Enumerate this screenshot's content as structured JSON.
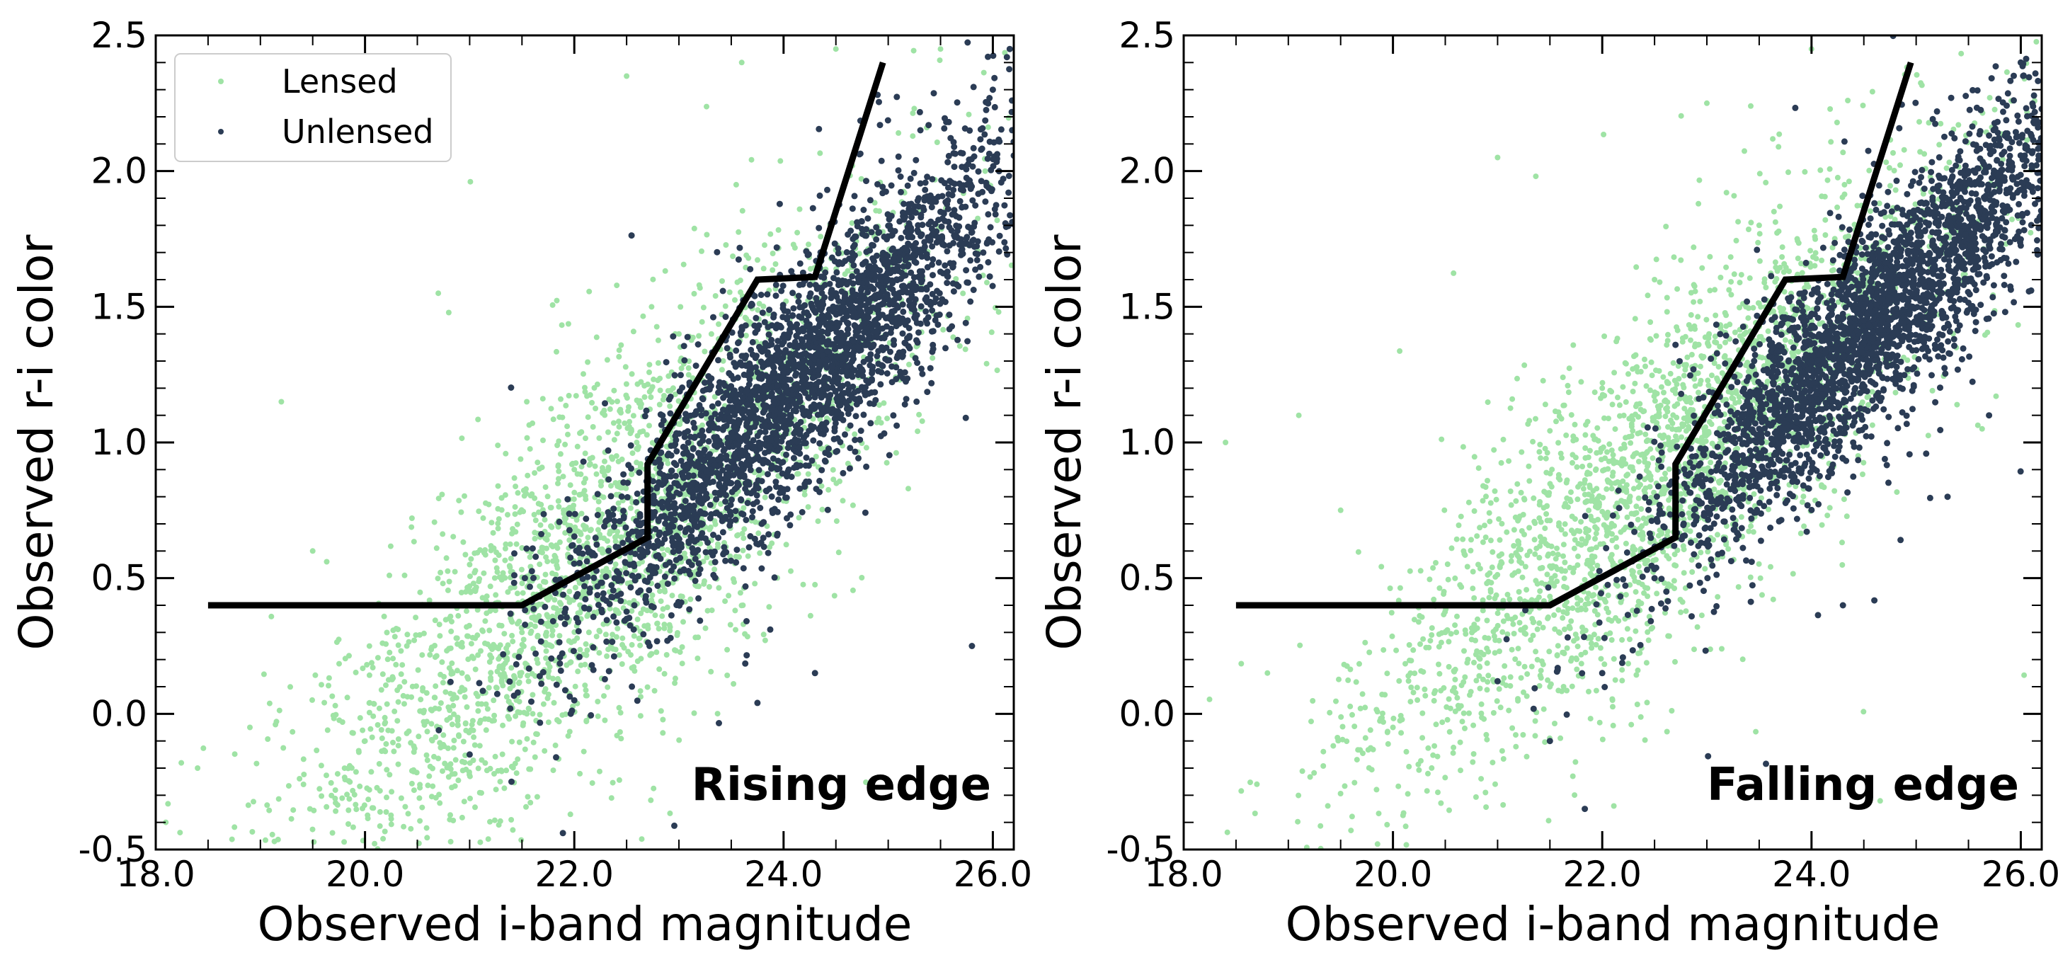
{
  "chart_data": [
    {
      "type": "scatter",
      "xlabel": "Observed i-band magnitude",
      "ylabel": "Observed r-i color",
      "xlim": [
        18.0,
        26.2
      ],
      "ylim": [
        -0.5,
        2.5
      ],
      "xticks": [
        18.0,
        20.0,
        22.0,
        24.0,
        26.0
      ],
      "xtick_labels": [
        "18.0",
        "20.0",
        "22.0",
        "24.0",
        "26.0"
      ],
      "yticks": [
        -0.5,
        0.0,
        0.5,
        1.0,
        1.5,
        2.0,
        2.5
      ],
      "ytick_labels": [
        "-0.5",
        "0.0",
        "0.5",
        "1.0",
        "1.5",
        "2.0",
        "2.5"
      ],
      "annotation": "Rising edge",
      "legend": {
        "placement": "top-left",
        "entries": [
          "Lensed",
          "Unlensed"
        ]
      },
      "series": [
        {
          "name": "Lensed",
          "color": "#9fe3a5",
          "distribution": {
            "slope": 0.33,
            "x_center": 22.3,
            "y_at_center": 0.6,
            "x_spread": 1.55,
            "y_scatter": 0.33,
            "n": 2600
          },
          "values": [
            [
              18.4,
              -0.2
            ],
            [
              18.9,
              -0.05
            ],
            [
              19.2,
              1.15
            ],
            [
              19.5,
              0.6
            ],
            [
              20.0,
              -0.1
            ],
            [
              20.4,
              0.25
            ],
            [
              20.7,
              1.55
            ],
            [
              21.0,
              0.55
            ],
            [
              21.5,
              0.3
            ],
            [
              22.0,
              0.9
            ],
            [
              22.5,
              2.35
            ],
            [
              23.0,
              1.4
            ],
            [
              23.6,
              2.4
            ],
            [
              24.5,
              2.45
            ],
            [
              25.5,
              2.45
            ]
          ]
        },
        {
          "name": "Unlensed",
          "color": "#2b3c55",
          "distribution": {
            "slope": 0.37,
            "x_center": 24.2,
            "y_at_center": 1.25,
            "x_spread": 1.1,
            "y_scatter": 0.2,
            "n": 3000
          },
          "values": [
            [
              21.0,
              -0.15
            ],
            [
              21.4,
              -0.25
            ],
            [
              22.0,
              0.05
            ],
            [
              22.5,
              0.35
            ],
            [
              23.0,
              0.6
            ],
            [
              23.5,
              0.85
            ],
            [
              24.0,
              1.1
            ],
            [
              24.5,
              1.35
            ],
            [
              25.0,
              1.6
            ],
            [
              25.5,
              1.85
            ],
            [
              26.0,
              2.3
            ],
            [
              25.8,
              0.25
            ],
            [
              24.3,
              0.15
            ]
          ]
        },
        {
          "name": "",
          "color": "#000000",
          "values": [
            [
              18.5,
              0.4
            ],
            [
              21.5,
              0.4
            ],
            [
              22.7,
              0.65
            ],
            [
              22.7,
              0.92
            ],
            [
              23.75,
              1.6
            ],
            [
              24.3,
              1.61
            ],
            [
              24.95,
              2.4
            ]
          ]
        }
      ]
    },
    {
      "type": "scatter",
      "xlabel": "Observed i-band magnitude",
      "ylabel": "Observed r-i color",
      "xlim": [
        18.0,
        26.2
      ],
      "ylim": [
        -0.5,
        2.5
      ],
      "xticks": [
        18.0,
        20.0,
        22.0,
        24.0,
        26.0
      ],
      "xtick_labels": [
        "18.0",
        "20.0",
        "22.0",
        "24.0",
        "26.0"
      ],
      "yticks": [
        -0.5,
        0.0,
        0.5,
        1.0,
        1.5,
        2.0,
        2.5
      ],
      "ytick_labels": [
        "-0.5",
        "0.0",
        "0.5",
        "1.0",
        "1.5",
        "2.0",
        "2.5"
      ],
      "annotation": "Falling edge",
      "series": [
        {
          "name": "Lensed",
          "color": "#9fe3a5",
          "distribution": {
            "slope": 0.33,
            "x_center": 22.6,
            "y_at_center": 0.9,
            "x_spread": 1.5,
            "y_scatter": 0.3,
            "n": 2600
          },
          "values": [
            [
              18.4,
              1.0
            ],
            [
              19.1,
              1.1
            ],
            [
              19.5,
              0.75
            ],
            [
              20.0,
              -0.05
            ],
            [
              20.5,
              0.3
            ],
            [
              21.0,
              2.05
            ],
            [
              21.5,
              0.1
            ],
            [
              22.0,
              1.2
            ],
            [
              22.5,
              1.6
            ],
            [
              23.0,
              2.25
            ],
            [
              23.5,
              1.8
            ],
            [
              24.0,
              2.45
            ]
          ]
        },
        {
          "name": "Unlensed",
          "color": "#2b3c55",
          "distribution": {
            "slope": 0.37,
            "x_center": 24.6,
            "y_at_center": 1.45,
            "x_spread": 1.05,
            "y_scatter": 0.19,
            "n": 3000
          },
          "values": [
            [
              21.0,
              0.12
            ],
            [
              21.5,
              -0.1
            ],
            [
              22.0,
              0.15
            ],
            [
              22.5,
              0.5
            ],
            [
              23.0,
              0.8
            ],
            [
              23.5,
              1.05
            ],
            [
              24.0,
              1.3
            ],
            [
              24.5,
              1.45
            ],
            [
              25.0,
              1.7
            ],
            [
              25.5,
              2.0
            ],
            [
              26.0,
              2.4
            ],
            [
              25.3,
              0.8
            ],
            [
              24.3,
              0.4
            ]
          ]
        },
        {
          "name": "",
          "color": "#000000",
          "values": [
            [
              18.5,
              0.4
            ],
            [
              21.5,
              0.4
            ],
            [
              22.7,
              0.65
            ],
            [
              22.7,
              0.92
            ],
            [
              23.75,
              1.6
            ],
            [
              24.3,
              1.61
            ],
            [
              24.95,
              2.4
            ]
          ]
        }
      ]
    }
  ]
}
